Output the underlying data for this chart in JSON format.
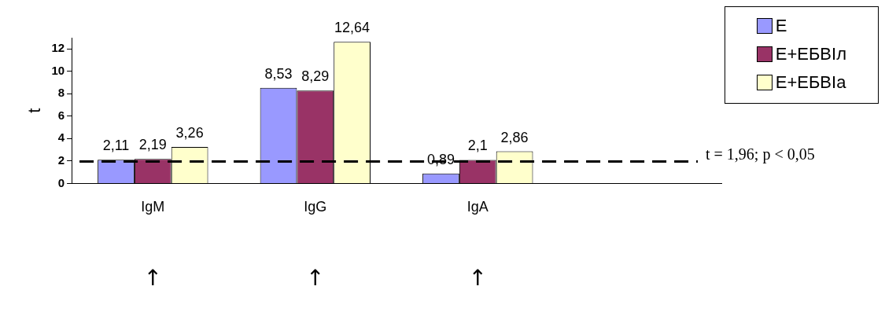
{
  "chart_data": {
    "type": "bar",
    "ylabel": "t",
    "categories": [
      "IgM",
      "IgG",
      "IgA",
      null
    ],
    "series": [
      {
        "name": "Е",
        "color": "#9999ff",
        "values": [
          2.11,
          8.53,
          0.89,
          null
        ],
        "value_labels": [
          "2,11",
          "8,53",
          "0,89",
          null
        ]
      },
      {
        "name": "Е+ЕБВІл",
        "color": "#993366",
        "values": [
          2.19,
          8.29,
          2.1,
          null
        ],
        "value_labels": [
          "2,19",
          "8,29",
          "2,1",
          null
        ]
      },
      {
        "name": "Е+ЕБВІа",
        "color": "#ffffcc",
        "values": [
          3.26,
          12.64,
          2.86,
          null
        ],
        "value_labels": [
          "3,26",
          "12,64",
          "2,86",
          null
        ]
      }
    ],
    "ylim": [
      0,
      13
    ],
    "yticks": [
      0,
      2,
      4,
      6,
      8,
      10,
      12
    ],
    "grid": false,
    "legend": "top right",
    "ref_lines": [
      {
        "axis": "y",
        "value": 1.96,
        "label": "t = 1,96; p < 0,05",
        "line_style": "dashed",
        "color": "#000000"
      }
    ],
    "annotations": [
      "↑",
      "↑",
      "↑"
    ]
  }
}
